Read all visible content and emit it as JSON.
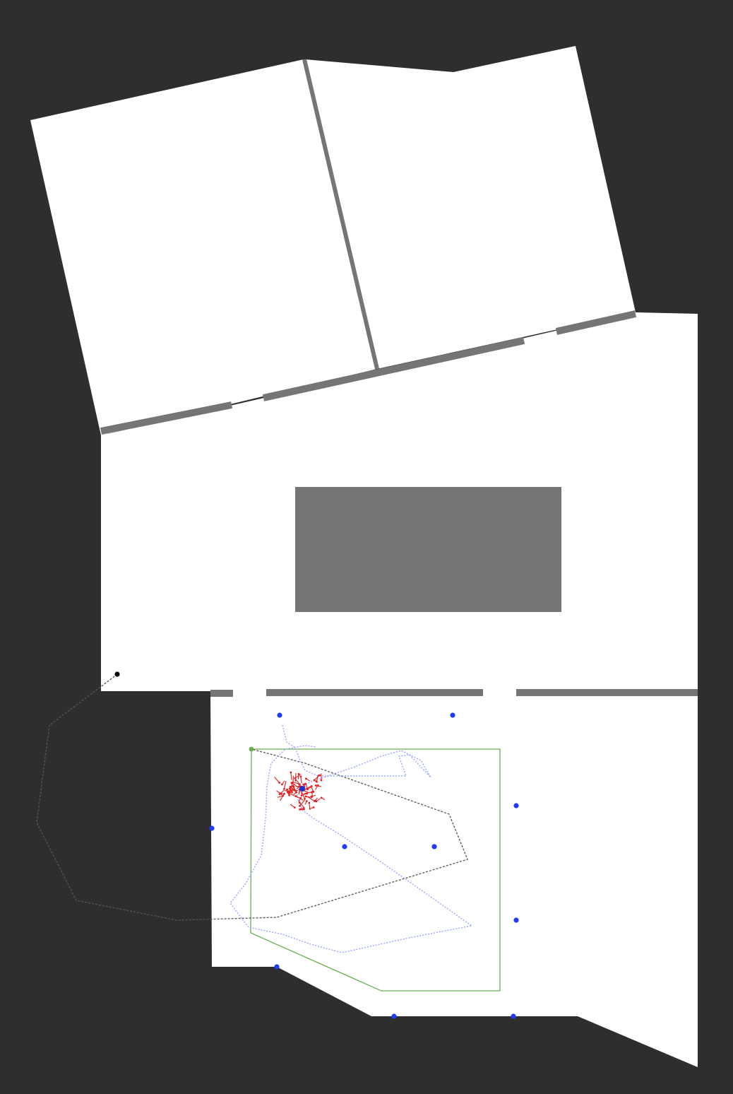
{
  "map": {
    "title": "",
    "colors": {
      "background": "#2e2e2e",
      "floor": "#ffffff",
      "wall": "#757575",
      "obstacle": "#757575",
      "beacon": "#1f3cff",
      "robot_estimate": "#1a30d0",
      "particles": "#e02020",
      "true_path": "#9aa6ff",
      "planned_path": "#555555",
      "region_outline": "#6ab04c",
      "start_marker": "#000000"
    },
    "legend": []
  },
  "chart_data": {
    "type": "scatter",
    "title": "",
    "series": [
      {
        "points": [
          [
            396,
            1012
          ],
          [
            641,
            1012
          ],
          [
            731,
            1140
          ],
          [
            300,
            1172
          ],
          [
            488,
            1198
          ],
          [
            615,
            1198
          ],
          [
            731,
            1302
          ],
          [
            392,
            1368
          ],
          [
            558,
            1438
          ],
          [
            727,
            1438
          ]
        ]
      },
      {
        "points": [
          [
            428,
            1116
          ]
        ]
      },
      {
        "points": [
          [
            400,
            1026
          ],
          [
            406,
            1050
          ],
          [
            418,
            1058
          ],
          [
            424,
            1074
          ],
          [
            432,
            1090
          ],
          [
            450,
            1098
          ],
          [
            575,
            1098
          ],
          [
            565,
            1070
          ],
          [
            580,
            1068
          ],
          [
            610,
            1100
          ],
          [
            596,
            1076
          ],
          [
            568,
            1062
          ],
          [
            540,
            1070
          ],
          [
            500,
            1086
          ],
          [
            464,
            1098
          ],
          [
            436,
            1108
          ],
          [
            420,
            1126
          ],
          [
            428,
            1146
          ],
          [
            444,
            1158
          ],
          [
            480,
            1180
          ],
          [
            540,
            1220
          ],
          [
            600,
            1262
          ],
          [
            668,
            1310
          ],
          [
            584,
            1326
          ],
          [
            484,
            1348
          ],
          [
            440,
            1336
          ],
          [
            400,
            1322
          ],
          [
            352,
            1312
          ],
          [
            326,
            1278
          ],
          [
            348,
            1250
          ],
          [
            370,
            1210
          ],
          [
            376,
            1160
          ],
          [
            378,
            1112
          ],
          [
            384,
            1080
          ],
          [
            404,
            1060
          ],
          [
            432,
            1055
          ],
          [
            448,
            1057
          ]
        ]
      },
      {
        "points": [
          [
            166,
            954
          ],
          [
            145,
            970
          ],
          [
            70,
            1026
          ],
          [
            52,
            1164
          ],
          [
            108,
            1274
          ],
          [
            250,
            1302
          ],
          [
            392,
            1298
          ],
          [
            662,
            1216
          ],
          [
            636,
            1152
          ],
          [
            432,
            1080
          ],
          [
            356,
            1060
          ]
        ]
      },
      {
        "points": [
          [
            356,
            1060
          ],
          [
            708,
            1060
          ],
          [
            708,
            1402
          ],
          [
            540,
            1402
          ],
          [
            355,
            1320
          ],
          [
            356,
            1060
          ]
        ]
      },
      {
        "points": [
          [
            166,
            954
          ]
        ]
      },
      {
        "points": [
          [
            356,
            1060
          ]
        ]
      }
    ]
  }
}
